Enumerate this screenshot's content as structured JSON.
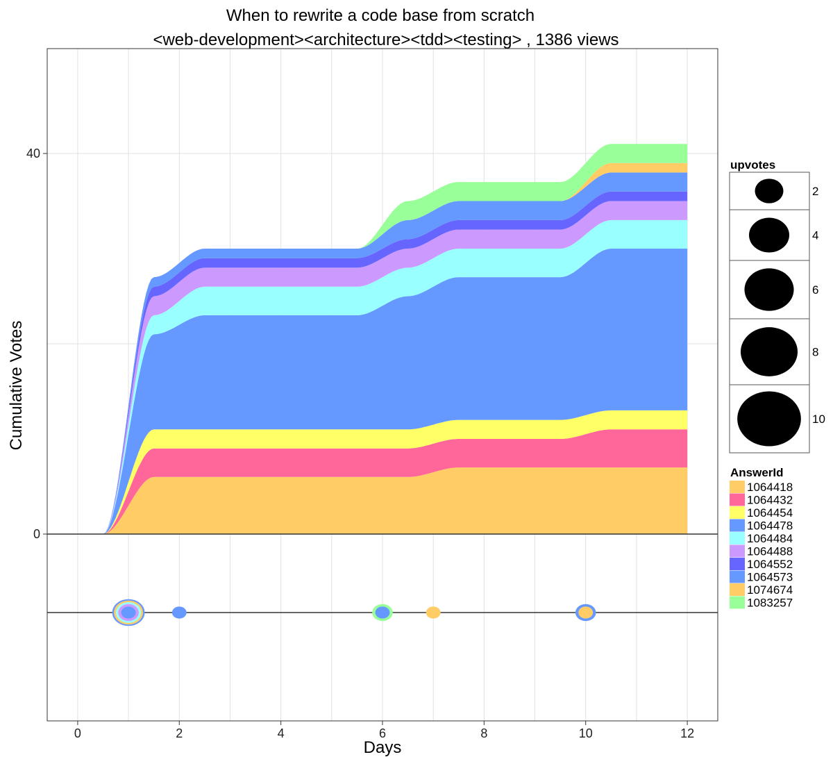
{
  "chart_data": {
    "type": "area",
    "title": "When to rewrite a code base from scratch",
    "subtitle": "<web-development><architecture><tdd><testing> ,  1386  views",
    "xlabel": "Days",
    "ylabel": "Cumulative Votes",
    "xlim": [
      -0.6,
      12.6
    ],
    "ylim": [
      0,
      40
    ],
    "x_ticks": [
      0,
      2,
      4,
      6,
      8,
      10,
      12
    ],
    "x_tick_labels": [
      "0",
      "2",
      "4",
      "6",
      "8",
      "10",
      "12"
    ],
    "y_ticks": [
      0,
      40
    ],
    "y_tick_labels": [
      "0",
      "40"
    ],
    "grid": true,
    "stacked": true,
    "x": [
      0,
      1,
      2,
      3,
      4,
      5,
      6,
      7,
      8,
      9,
      10,
      11,
      12
    ],
    "series": [
      {
        "name": "1064418",
        "color": "#FFCC66",
        "values": [
          0,
          6,
          6,
          6,
          6,
          6,
          6,
          7,
          7,
          7,
          7,
          7,
          7
        ]
      },
      {
        "name": "1064432",
        "color": "#FF6699",
        "values": [
          0,
          3,
          3,
          3,
          3,
          3,
          3,
          3,
          3,
          3,
          4,
          4,
          4
        ]
      },
      {
        "name": "1064454",
        "color": "#FFFF66",
        "values": [
          0,
          2,
          2,
          2,
          2,
          2,
          2,
          2,
          2,
          2,
          2,
          2,
          2
        ]
      },
      {
        "name": "1064478",
        "color": "#6699FF",
        "values": [
          0,
          10,
          12,
          12,
          12,
          12,
          14,
          15,
          15,
          15,
          17,
          17,
          17
        ]
      },
      {
        "name": "1064484",
        "color": "#99FFFF",
        "values": [
          0,
          2,
          3,
          3,
          3,
          3,
          3,
          3,
          3,
          3,
          3,
          3,
          3
        ]
      },
      {
        "name": "1064488",
        "color": "#CC99FF",
        "values": [
          0,
          2,
          2,
          2,
          2,
          2,
          2,
          2,
          2,
          2,
          2,
          2,
          2
        ]
      },
      {
        "name": "1064552",
        "color": "#6666FF",
        "values": [
          0,
          1,
          1,
          1,
          1,
          1,
          1,
          1,
          1,
          1,
          1,
          1,
          1
        ]
      },
      {
        "name": "1064573",
        "color": "#6699FF",
        "values": [
          0,
          1,
          1,
          1,
          1,
          1,
          2,
          2,
          2,
          2,
          2,
          2,
          2
        ]
      },
      {
        "name": "1074674",
        "color": "#FFCC66",
        "values": [
          0,
          0,
          0,
          0,
          0,
          0,
          0,
          0,
          0,
          0,
          1,
          1,
          1
        ]
      },
      {
        "name": "1083257",
        "color": "#99FF99",
        "values": [
          0,
          0,
          0,
          0,
          0,
          0,
          2,
          2,
          2,
          2,
          2,
          2,
          2
        ]
      }
    ],
    "vote_events": [
      {
        "day": 1,
        "answer": "1064573",
        "upvotes": 10
      },
      {
        "day": 1,
        "answer": "1064418",
        "upvotes": 8
      },
      {
        "day": 1,
        "answer": "1064484",
        "upvotes": 6
      },
      {
        "day": 1,
        "answer": "1064488",
        "upvotes": 4
      },
      {
        "day": 1,
        "answer": "1064478",
        "upvotes": 2
      },
      {
        "day": 2,
        "answer": "1064478",
        "upvotes": 2
      },
      {
        "day": 6,
        "answer": "1083257",
        "upvotes": 4
      },
      {
        "day": 6,
        "answer": "1064478",
        "upvotes": 2
      },
      {
        "day": 7,
        "answer": "1064418",
        "upvotes": 2
      },
      {
        "day": 10,
        "answer": "1064478",
        "upvotes": 4
      },
      {
        "day": 10,
        "answer": "1074674",
        "upvotes": 2
      }
    ],
    "size_legend": {
      "title": "upvotes",
      "entries": [
        {
          "label": "2",
          "value": 2
        },
        {
          "label": "4",
          "value": 4
        },
        {
          "label": "6",
          "value": 6
        },
        {
          "label": "8",
          "value": 8
        },
        {
          "label": "10",
          "value": 10
        }
      ]
    },
    "color_legend": {
      "title": "AnswerId",
      "placement": "right"
    }
  }
}
